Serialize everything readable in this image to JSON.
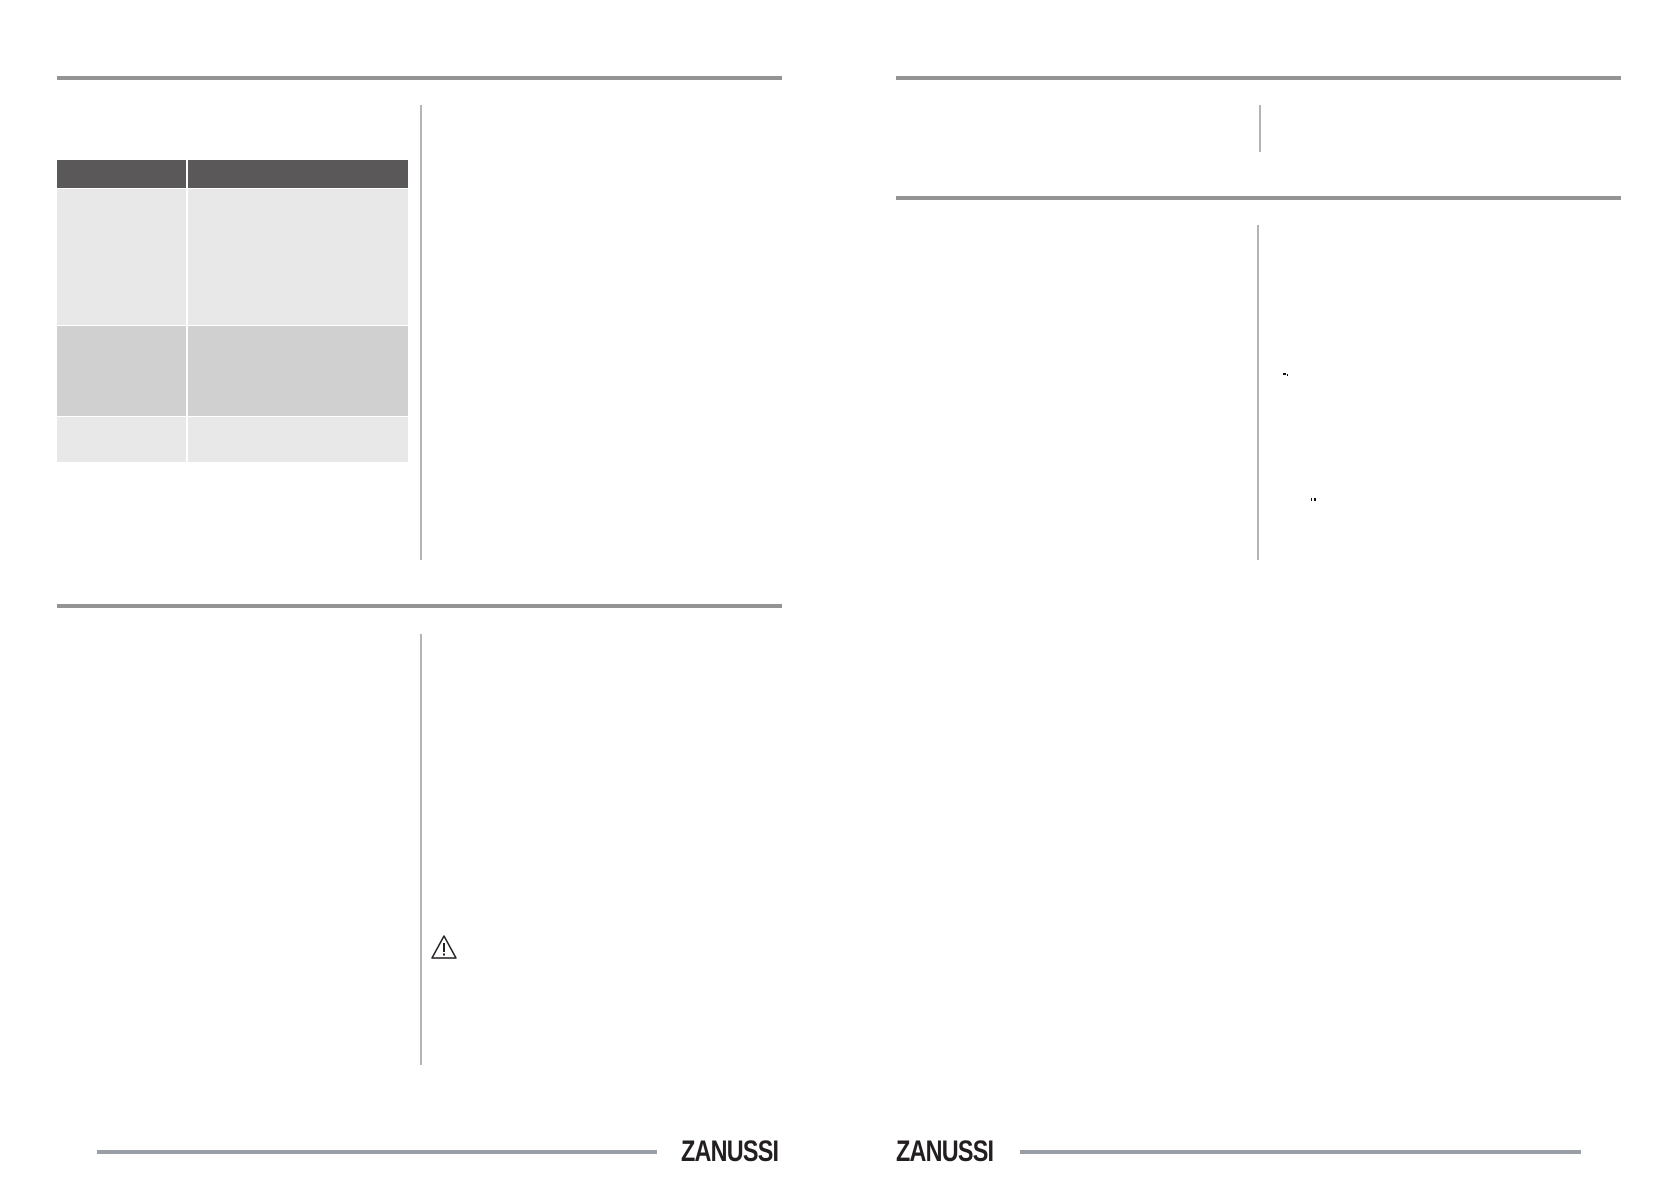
{
  "brand": {
    "logo_text": "ZANUSSI"
  },
  "colors": {
    "rule": "#949494",
    "table_header": "#5a5859",
    "row_light": "#e8e8e8",
    "row_dark": "#d0d0d0",
    "footer_rule": "#9a9ea6"
  },
  "table": {
    "columns": [
      "",
      ""
    ],
    "rows": [
      [
        "",
        ""
      ],
      [
        "",
        ""
      ],
      [
        "",
        ""
      ]
    ]
  },
  "icons": {
    "warning": "warning-triangle-icon"
  }
}
